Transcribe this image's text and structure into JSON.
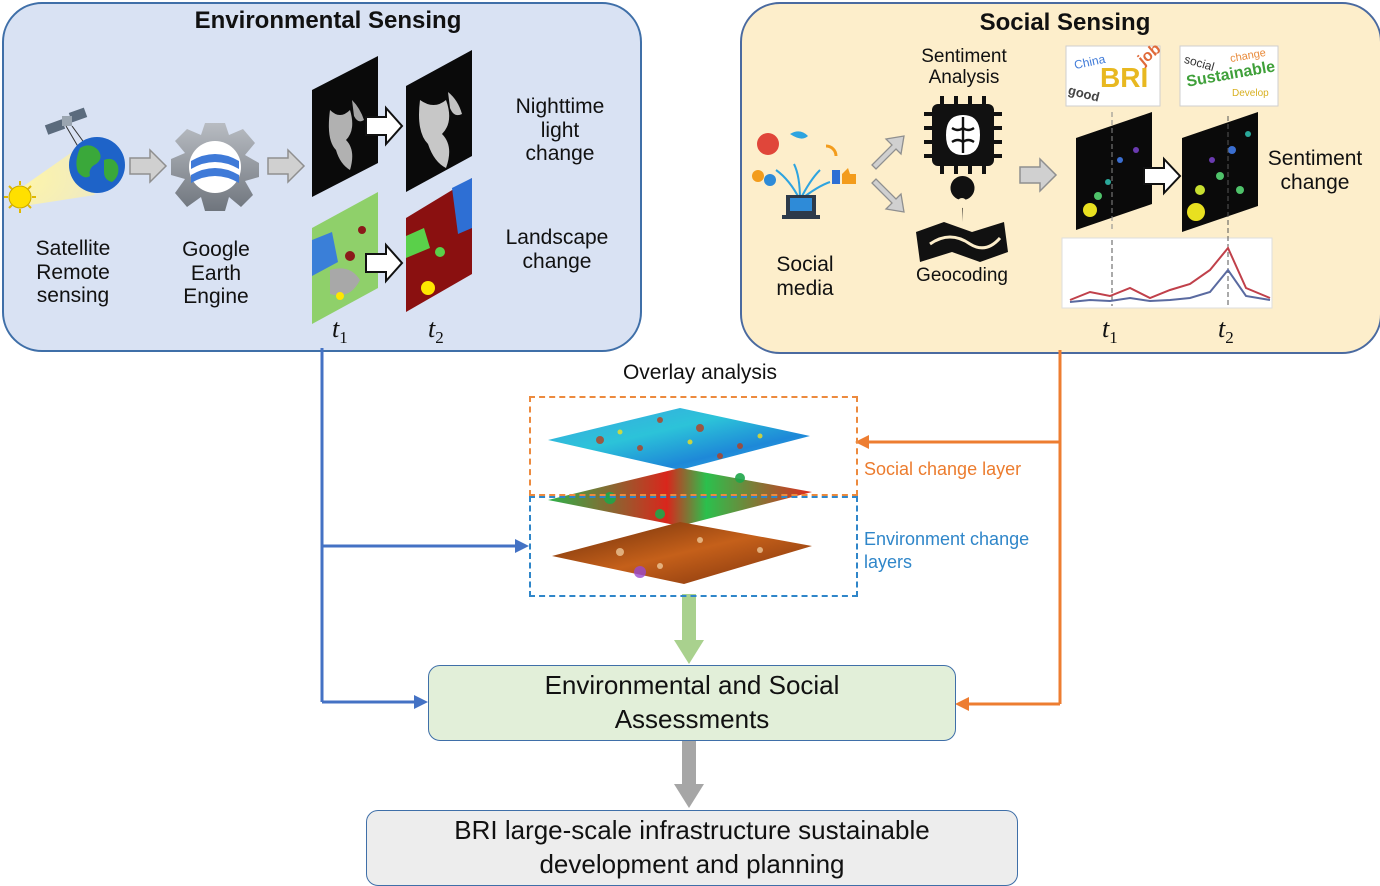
{
  "environmental": {
    "title": "Environmental Sensing",
    "satellite_label": [
      "Satellite",
      "Remote",
      "sensing"
    ],
    "gee_label": [
      "Google",
      "Earth",
      "Engine"
    ],
    "nighttime_label": [
      "Nighttime",
      "light",
      "change"
    ],
    "landscape_label": [
      "Landscape",
      "change"
    ],
    "t1": "t",
    "t1_sub": "1",
    "t2": "t",
    "t2_sub": "2"
  },
  "social": {
    "title": "Social Sensing",
    "sentiment_analysis_label": [
      "Sentiment",
      "Analysis"
    ],
    "geocoding_label": "Geocoding",
    "social_media_label": [
      "Social",
      "media"
    ],
    "sentiment_change_label": [
      "Sentiment",
      "change"
    ],
    "wordcloud1": [
      "China",
      "BRI",
      "job",
      "good"
    ],
    "wordcloud2": [
      "social",
      "change",
      "Sustainable",
      "Develop"
    ],
    "t1": "t",
    "t1_sub": "1",
    "t2": "t",
    "t2_sub": "2"
  },
  "overlay": {
    "title": "Overlay analysis",
    "social_layer_label": "Social change layer",
    "environment_layer_label": [
      "Environment change",
      "layers"
    ]
  },
  "assessment_label": [
    "Environmental and Social",
    "Assessments"
  ],
  "bri_label": [
    "BRI large-scale infrastructure sustainable",
    "development and planning"
  ],
  "colors": {
    "env_panel": "#d9e2f3",
    "social_panel": "#fdeecb",
    "assessment_box": "#e2efd9",
    "bri_box": "#ededed",
    "blue_arrow": "#4472c4",
    "orange_arrow": "#ed7d31",
    "green_arrow": "#a9d18e",
    "gray_arrow": "#a6a6a6"
  }
}
